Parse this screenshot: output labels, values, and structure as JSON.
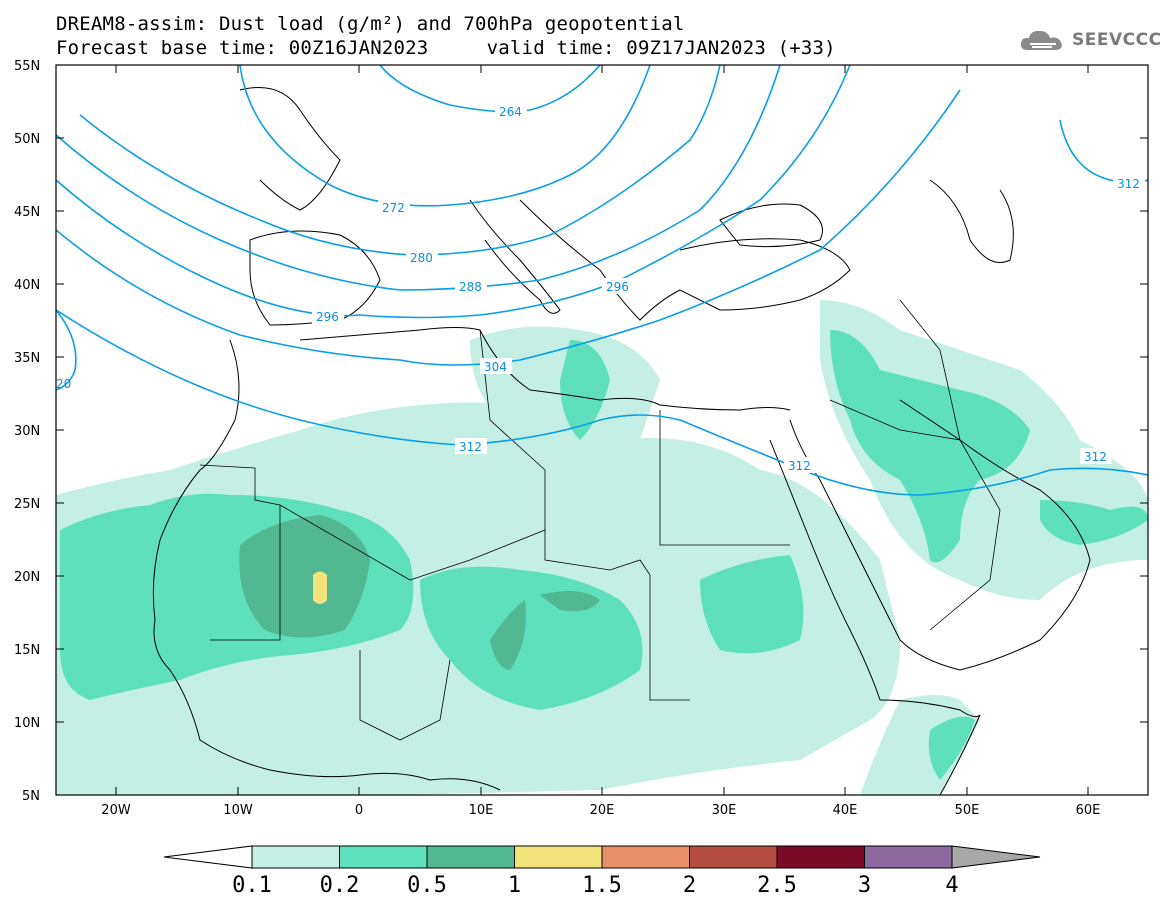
{
  "header": {
    "title_line1": "DREAM8-assim: Dust load (g/m²) and 700hPa geopotential",
    "title_line2": "Forecast base time: 00Z16JAN2023     valid time: 09Z17JAN2023 (+33)"
  },
  "logo": {
    "text": "SEEVCCC",
    "icon": "cloud-icon"
  },
  "map": {
    "lat_labels": [
      "55N",
      "50N",
      "45N",
      "40N",
      "35N",
      "30N",
      "25N",
      "20N",
      "15N",
      "10N",
      "5N"
    ],
    "lon_labels": [
      "20W",
      "10W",
      "0",
      "10E",
      "20E",
      "30E",
      "40E",
      "50E",
      "60E"
    ],
    "contour_labels": [
      "264",
      "272",
      "280",
      "288",
      "296",
      "304",
      "312",
      "312",
      "312",
      "312",
      "20"
    ],
    "contour_color": "#0a9fe6",
    "field_colors": [
      "#c4efe4",
      "#5ee0bc",
      "#52b891",
      "#f2e37a"
    ]
  },
  "colorbar": {
    "labels": [
      "0.1",
      "0.2",
      "0.5",
      "1",
      "1.5",
      "2",
      "2.5",
      "3",
      "4"
    ],
    "colors": [
      "#c4efe4",
      "#5ee0bc",
      "#52b891",
      "#f2e37a",
      "#e8906a",
      "#b54c40",
      "#7a0a26",
      "#8c6aa0",
      "#a8a8a8"
    ]
  }
}
